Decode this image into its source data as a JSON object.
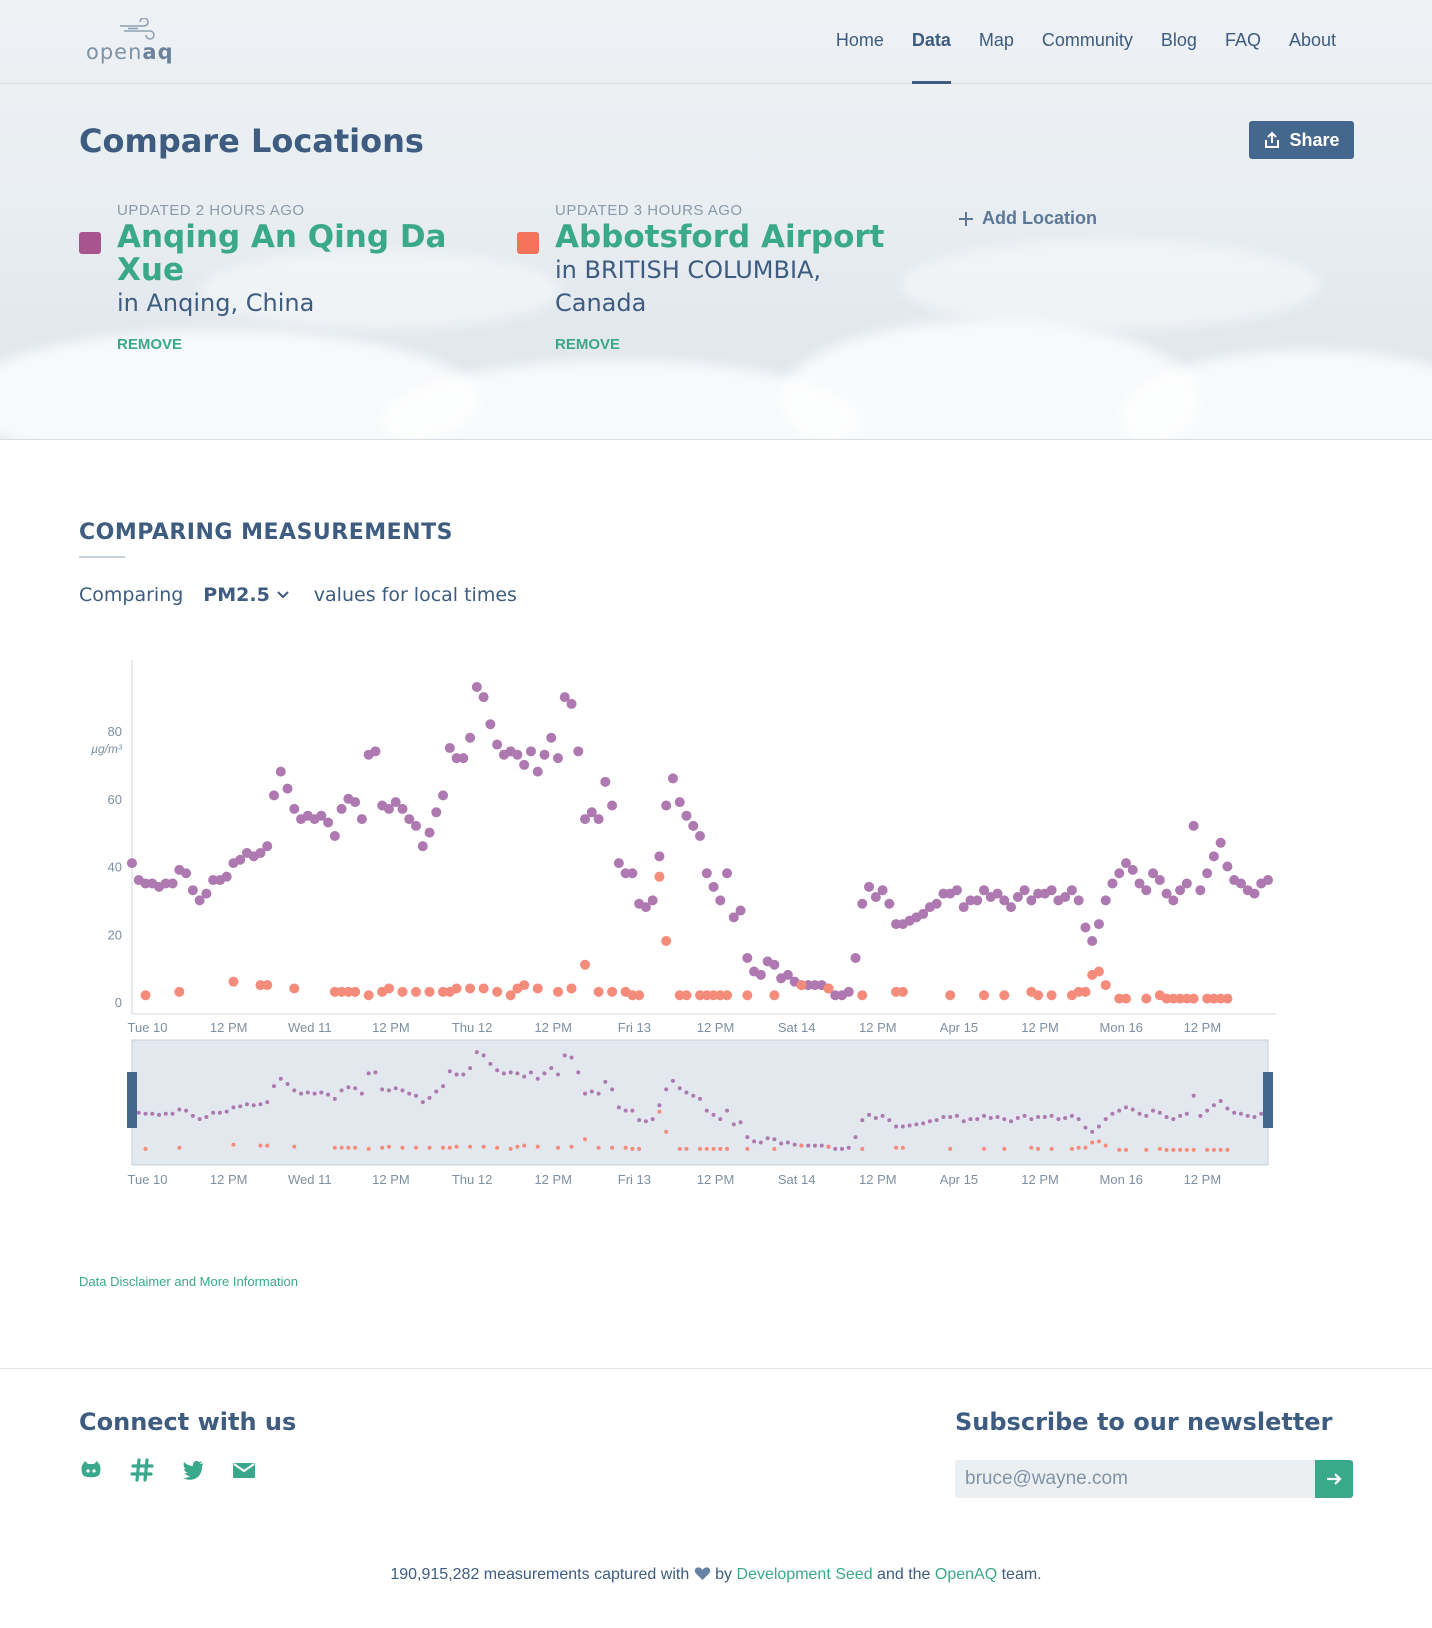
{
  "logo": {
    "text_light": "open",
    "text_bold": "aq"
  },
  "nav": {
    "items": [
      {
        "label": "Home",
        "active": false
      },
      {
        "label": "Data",
        "active": true
      },
      {
        "label": "Map",
        "active": false
      },
      {
        "label": "Community",
        "active": false
      },
      {
        "label": "Blog",
        "active": false
      },
      {
        "label": "FAQ",
        "active": false
      },
      {
        "label": "About",
        "active": false
      }
    ]
  },
  "page": {
    "title": "Compare Locations",
    "share_label": "Share"
  },
  "locations": [
    {
      "updated": "UPDATED 2 HOURS AGO",
      "name": "Anqing An Qing Da Xue",
      "place": "in Anqing, China",
      "remove": "REMOVE",
      "color": "#a8548e"
    },
    {
      "updated": "UPDATED 3 HOURS AGO",
      "name": "Abbotsford Airport",
      "place": "in BRITISH COLUMBIA, Canada",
      "remove": "REMOVE",
      "color": "#f3735a"
    }
  ],
  "add_location_label": "Add Location",
  "measurements": {
    "title": "COMPARING MEASUREMENTS",
    "prefix": "Comparing",
    "parameter": "PM2.5",
    "suffix": "values for local times"
  },
  "chart_data": {
    "type": "scatter",
    "ylabel": "µg/m³",
    "ylim": [
      0,
      95
    ],
    "yticks": [
      0,
      20,
      40,
      60,
      80
    ],
    "xticks": [
      "Tue 10",
      "12 PM",
      "Wed 11",
      "12 PM",
      "Thu 12",
      "12 PM",
      "Fri 13",
      "12 PM",
      "Sat 14",
      "12 PM",
      "Apr 15",
      "12 PM",
      "Mon 16",
      "12 PM"
    ],
    "xlim_hours": [
      -2,
      166
    ],
    "series": [
      {
        "color": "#ad79b0",
        "points": [
          [
            -2,
            41
          ],
          [
            -1,
            36
          ],
          [
            0,
            35
          ],
          [
            1,
            35
          ],
          [
            2,
            34
          ],
          [
            3,
            35
          ],
          [
            4,
            35
          ],
          [
            5,
            39
          ],
          [
            6,
            38
          ],
          [
            7,
            33
          ],
          [
            8,
            30
          ],
          [
            9,
            32
          ],
          [
            10,
            36
          ],
          [
            11,
            36
          ],
          [
            12,
            37
          ],
          [
            13,
            41
          ],
          [
            14,
            42
          ],
          [
            15,
            44
          ],
          [
            16,
            43
          ],
          [
            17,
            44
          ],
          [
            18,
            46
          ],
          [
            19,
            61
          ],
          [
            20,
            68
          ],
          [
            21,
            63
          ],
          [
            22,
            57
          ],
          [
            23,
            54
          ],
          [
            24,
            55
          ],
          [
            25,
            54
          ],
          [
            26,
            55
          ],
          [
            27,
            53
          ],
          [
            28,
            49
          ],
          [
            29,
            57
          ],
          [
            30,
            60
          ],
          [
            31,
            59
          ],
          [
            32,
            54
          ],
          [
            33,
            73
          ],
          [
            34,
            74
          ],
          [
            35,
            58
          ],
          [
            36,
            57
          ],
          [
            37,
            59
          ],
          [
            38,
            57
          ],
          [
            39,
            54
          ],
          [
            40,
            52
          ],
          [
            41,
            46
          ],
          [
            42,
            50
          ],
          [
            43,
            56
          ],
          [
            44,
            61
          ],
          [
            45,
            75
          ],
          [
            46,
            72
          ],
          [
            47,
            72
          ],
          [
            48,
            78
          ],
          [
            49,
            93
          ],
          [
            50,
            90
          ],
          [
            51,
            82
          ],
          [
            52,
            76
          ],
          [
            53,
            73
          ],
          [
            54,
            74
          ],
          [
            55,
            73
          ],
          [
            56,
            70
          ],
          [
            57,
            74
          ],
          [
            58,
            68
          ],
          [
            59,
            73
          ],
          [
            60,
            78
          ],
          [
            61,
            72
          ],
          [
            62,
            90
          ],
          [
            63,
            88
          ],
          [
            64,
            74
          ],
          [
            65,
            54
          ],
          [
            66,
            56
          ],
          [
            67,
            54
          ],
          [
            68,
            65
          ],
          [
            69,
            58
          ],
          [
            70,
            41
          ],
          [
            71,
            38
          ],
          [
            72,
            38
          ],
          [
            73,
            29
          ],
          [
            74,
            28
          ],
          [
            75,
            30
          ],
          [
            76,
            43
          ],
          [
            77,
            58
          ],
          [
            78,
            66
          ],
          [
            79,
            59
          ],
          [
            80,
            55
          ],
          [
            81,
            52
          ],
          [
            82,
            49
          ],
          [
            83,
            38
          ],
          [
            84,
            34
          ],
          [
            85,
            30
          ],
          [
            86,
            38
          ],
          [
            87,
            25
          ],
          [
            88,
            27
          ],
          [
            89,
            13
          ],
          [
            90,
            9
          ],
          [
            91,
            8
          ],
          [
            92,
            12
          ],
          [
            93,
            11
          ],
          [
            94,
            7
          ],
          [
            95,
            8
          ],
          [
            96,
            6
          ],
          [
            97,
            5
          ],
          [
            98,
            5
          ],
          [
            99,
            5
          ],
          [
            100,
            5
          ],
          [
            101,
            4
          ],
          [
            102,
            2
          ],
          [
            103,
            2
          ],
          [
            104,
            3
          ],
          [
            105,
            13
          ],
          [
            106,
            29
          ],
          [
            107,
            34
          ],
          [
            108,
            31
          ],
          [
            109,
            33
          ],
          [
            110,
            29
          ],
          [
            111,
            23
          ],
          [
            112,
            23
          ],
          [
            113,
            24
          ],
          [
            114,
            25
          ],
          [
            115,
            26
          ],
          [
            116,
            28
          ],
          [
            117,
            29
          ],
          [
            118,
            32
          ],
          [
            119,
            32
          ],
          [
            120,
            33
          ],
          [
            121,
            28
          ],
          [
            122,
            30
          ],
          [
            123,
            30
          ],
          [
            124,
            33
          ],
          [
            125,
            31
          ],
          [
            126,
            32
          ],
          [
            127,
            30
          ],
          [
            128,
            28
          ],
          [
            129,
            31
          ],
          [
            130,
            33
          ],
          [
            131,
            30
          ],
          [
            132,
            32
          ],
          [
            133,
            32
          ],
          [
            134,
            33
          ],
          [
            135,
            30
          ],
          [
            136,
            31
          ],
          [
            137,
            33
          ],
          [
            138,
            30
          ],
          [
            139,
            22
          ],
          [
            140,
            18
          ],
          [
            141,
            23
          ],
          [
            142,
            30
          ],
          [
            143,
            35
          ],
          [
            144,
            38
          ],
          [
            145,
            41
          ],
          [
            146,
            39
          ],
          [
            147,
            35
          ],
          [
            148,
            33
          ],
          [
            149,
            38
          ],
          [
            150,
            36
          ],
          [
            151,
            32
          ],
          [
            152,
            30
          ],
          [
            153,
            33
          ],
          [
            154,
            35
          ],
          [
            155,
            52
          ],
          [
            156,
            33
          ],
          [
            157,
            38
          ],
          [
            158,
            43
          ],
          [
            159,
            47
          ],
          [
            160,
            40
          ],
          [
            161,
            36
          ],
          [
            162,
            35
          ],
          [
            163,
            33
          ],
          [
            164,
            32
          ],
          [
            165,
            35
          ],
          [
            166,
            36
          ]
        ]
      },
      {
        "color": "#f58b7a",
        "points": [
          [
            0,
            2
          ],
          [
            5,
            3
          ],
          [
            13,
            6
          ],
          [
            17,
            5
          ],
          [
            18,
            5
          ],
          [
            22,
            4
          ],
          [
            28,
            3
          ],
          [
            29,
            3
          ],
          [
            30,
            3
          ],
          [
            31,
            3
          ],
          [
            33,
            2
          ],
          [
            35,
            3
          ],
          [
            36,
            4
          ],
          [
            38,
            3
          ],
          [
            40,
            3
          ],
          [
            42,
            3
          ],
          [
            44,
            3
          ],
          [
            45,
            3
          ],
          [
            46,
            4
          ],
          [
            48,
            4
          ],
          [
            50,
            4
          ],
          [
            52,
            3
          ],
          [
            54,
            2
          ],
          [
            55,
            4
          ],
          [
            56,
            5
          ],
          [
            58,
            4
          ],
          [
            61,
            3
          ],
          [
            63,
            4
          ],
          [
            65,
            11
          ],
          [
            67,
            3
          ],
          [
            69,
            3
          ],
          [
            71,
            3
          ],
          [
            72,
            2
          ],
          [
            73,
            2
          ],
          [
            76,
            37
          ],
          [
            77,
            18
          ],
          [
            79,
            2
          ],
          [
            80,
            2
          ],
          [
            82,
            2
          ],
          [
            83,
            2
          ],
          [
            84,
            2
          ],
          [
            85,
            2
          ],
          [
            86,
            2
          ],
          [
            89,
            2
          ],
          [
            93,
            2
          ],
          [
            97,
            5
          ],
          [
            101,
            4
          ],
          [
            106,
            2
          ],
          [
            111,
            3
          ],
          [
            112,
            3
          ],
          [
            119,
            2
          ],
          [
            124,
            2
          ],
          [
            127,
            2
          ],
          [
            131,
            3
          ],
          [
            132,
            2
          ],
          [
            134,
            2
          ],
          [
            137,
            2
          ],
          [
            138,
            3
          ],
          [
            139,
            3
          ],
          [
            140,
            8
          ],
          [
            141,
            9
          ],
          [
            142,
            5
          ],
          [
            144,
            1
          ],
          [
            145,
            1
          ],
          [
            148,
            1
          ],
          [
            150,
            2
          ],
          [
            151,
            1
          ],
          [
            152,
            1
          ],
          [
            153,
            1
          ],
          [
            154,
            1
          ],
          [
            155,
            1
          ],
          [
            157,
            1
          ],
          [
            158,
            1
          ],
          [
            159,
            1
          ],
          [
            160,
            1
          ]
        ]
      }
    ]
  },
  "disclaimer": "Data Disclaimer and More Information",
  "footer": {
    "connect_title": "Connect with us",
    "social": [
      "github-icon",
      "slack-icon",
      "twitter-icon",
      "email-icon"
    ],
    "newsletter_title": "Subscribe to our newsletter",
    "email_value": "bruce@wayne.com",
    "count": "190,915,282",
    "credit_1": "measurements captured with",
    "credit_2": "by",
    "dev_seed": "Development Seed",
    "credit_3": "and the",
    "openaq": "OpenAQ",
    "credit_4": "team."
  }
}
